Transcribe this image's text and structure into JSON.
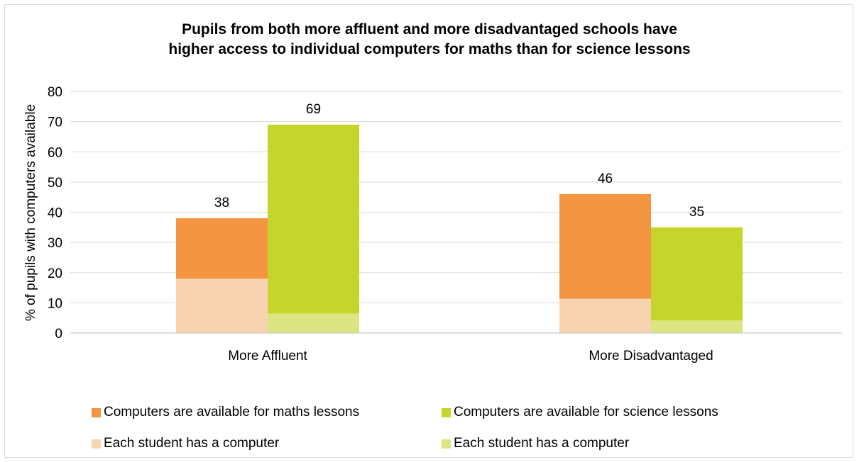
{
  "chart_data": {
    "type": "bar",
    "title": [
      "Pupils from both more affluent and more disadvantaged schools have",
      "higher access to individual computers for maths than for science lessons"
    ],
    "ylabel": "% of pupils with computers available",
    "xlabel": "",
    "ylim": [
      0,
      80
    ],
    "yticks": [
      0,
      10,
      20,
      30,
      40,
      50,
      60,
      70,
      80
    ],
    "grid": true,
    "legend_position": "bottom",
    "categories": [
      "More Affluent",
      "More Disadvantaged"
    ],
    "series": [
      {
        "name": "Computers are available for maths lessons",
        "subject": "maths",
        "layer": "total",
        "color": "#f39541",
        "values": [
          38,
          46
        ],
        "labels": [
          "38",
          "46"
        ]
      },
      {
        "name": "Computers are available for science lessons",
        "subject": "science",
        "layer": "total",
        "color": "#c5d52b",
        "values": [
          69,
          35
        ],
        "labels": [
          "69",
          "35"
        ]
      },
      {
        "name": "Each student has a computer",
        "subject": "maths",
        "layer": "each",
        "color": "#f8d3b1",
        "values": [
          18,
          11.4
        ]
      },
      {
        "name": "Each student has a computer",
        "subject": "science",
        "layer": "each",
        "color": "#dbe582",
        "values": [
          6.5,
          4.2
        ]
      }
    ]
  }
}
